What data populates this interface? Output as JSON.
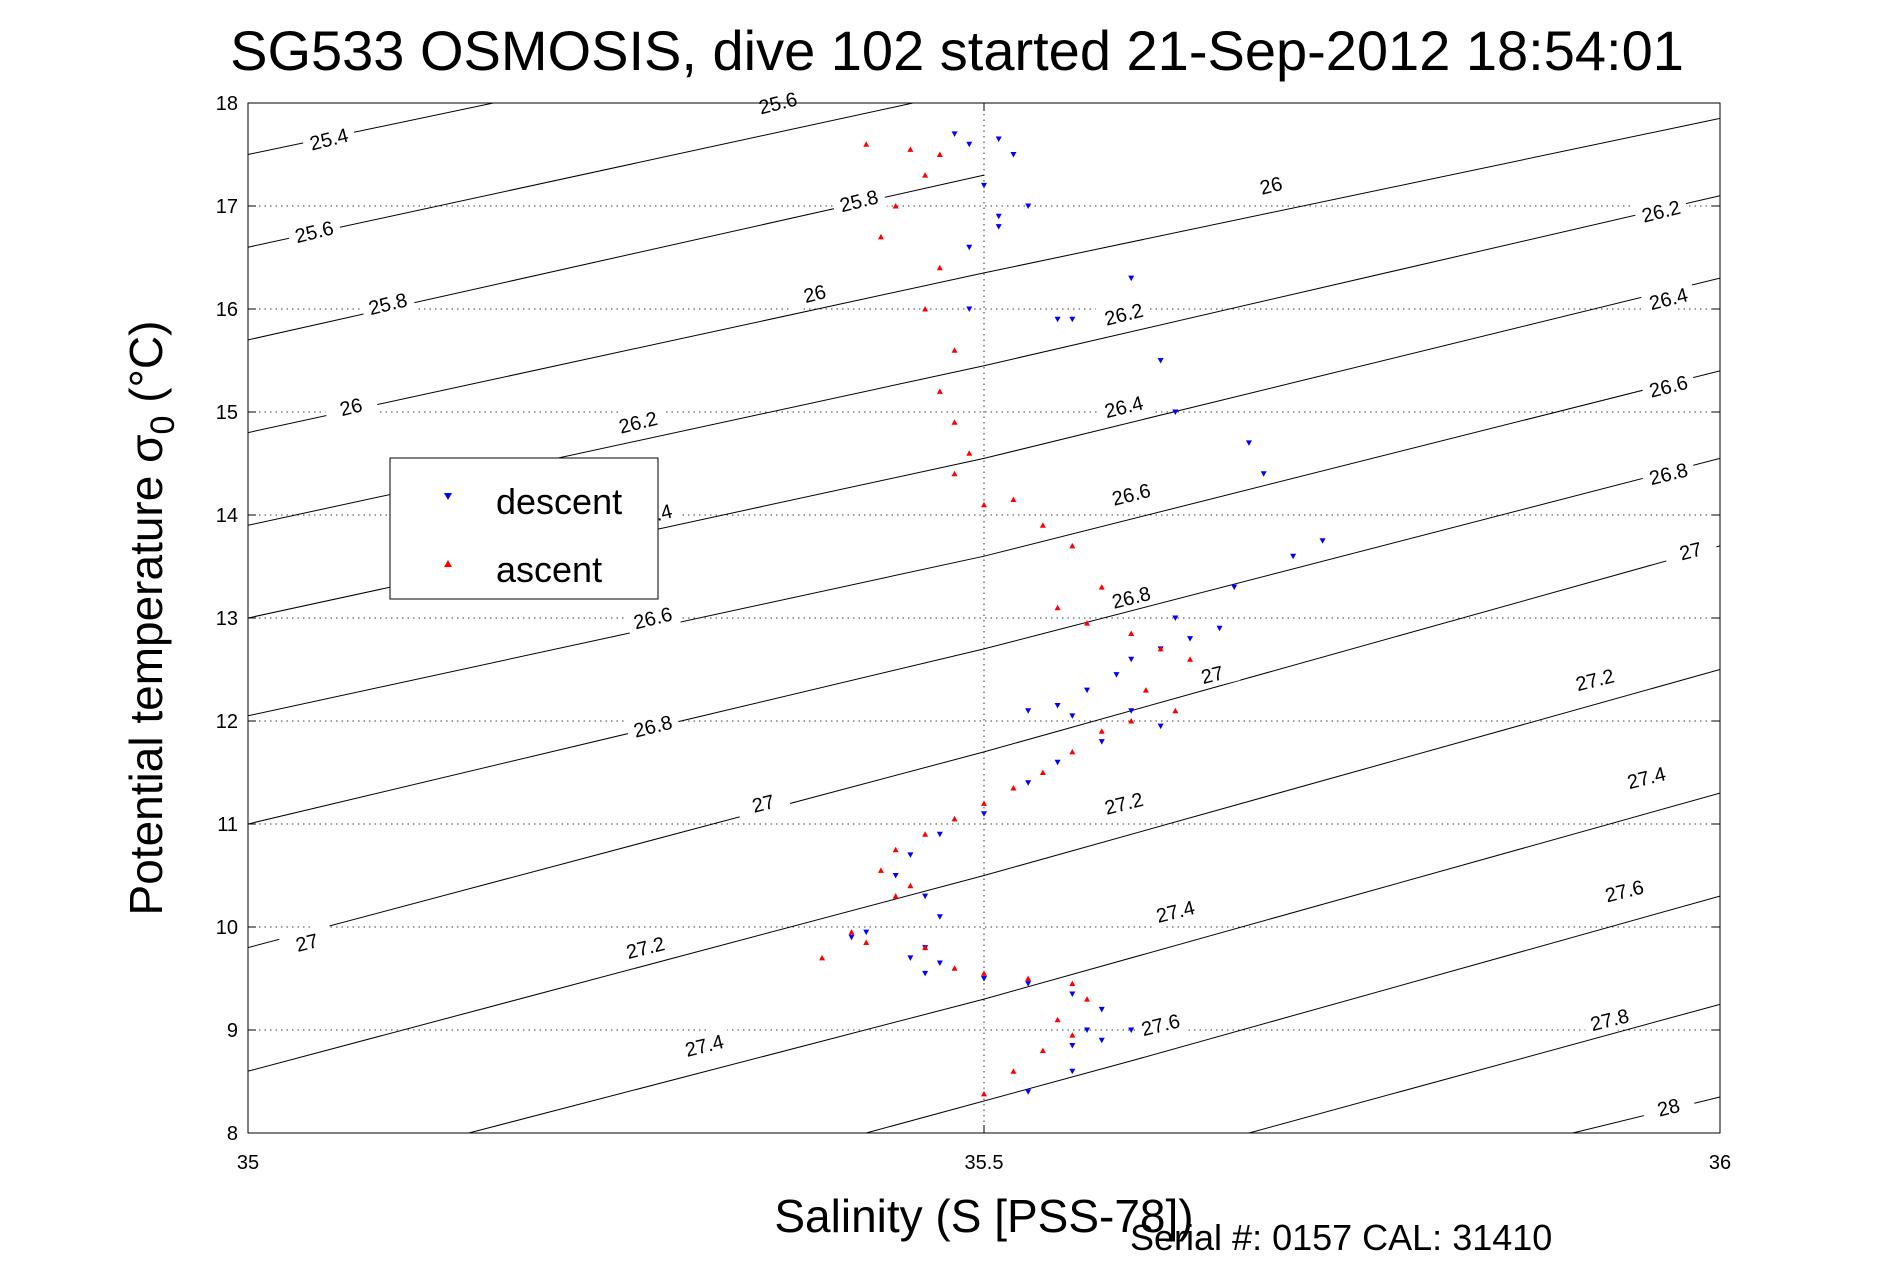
{
  "chart_data": {
    "type": "scatter",
    "title": "SG533 OSMOSIS, dive 102 started 21-Sep-2012 18:54:01",
    "xlabel": "Salinity (S [PSS-78])",
    "ylabel_main": "Potential temperature ",
    "ylabel_sigma": "σ",
    "ylabel_sub": "0",
    "ylabel_unit": " (°C)",
    "xlim": [
      35,
      36
    ],
    "ylim": [
      8,
      18
    ],
    "x_ticks": [
      35,
      35.5,
      36
    ],
    "x_tick_labels": [
      "35",
      "35.5",
      "36"
    ],
    "y_ticks": [
      8,
      9,
      10,
      11,
      12,
      13,
      14,
      15,
      16,
      17,
      18
    ],
    "y_tick_labels": [
      "8",
      "9",
      "10",
      "11",
      "12",
      "13",
      "14",
      "15",
      "16",
      "17",
      "18"
    ],
    "grid": true,
    "legend_position": "left-center",
    "footer": "Serial #: 0157  CAL: 31410",
    "density_contours": [
      {
        "value": "25.4",
        "points": [
          [
            35.0,
            17.5
          ],
          [
            35.5,
            19.0
          ]
        ]
      },
      {
        "value": "25.6",
        "points": [
          [
            35.0,
            16.6
          ],
          [
            35.5,
            18.15
          ]
        ]
      },
      {
        "value": "25.8",
        "points": [
          [
            35.0,
            15.7
          ],
          [
            35.5,
            17.3
          ]
        ]
      },
      {
        "value": "26",
        "points": [
          [
            35.0,
            14.8
          ],
          [
            35.5,
            16.35
          ],
          [
            36.0,
            17.85
          ]
        ]
      },
      {
        "value": "26.2",
        "points": [
          [
            35.0,
            13.9
          ],
          [
            35.5,
            15.45
          ],
          [
            36.0,
            17.1
          ]
        ]
      },
      {
        "value": "26.4",
        "points": [
          [
            35.0,
            13.0
          ],
          [
            35.5,
            14.55
          ],
          [
            36.0,
            16.3
          ]
        ]
      },
      {
        "value": "26.6",
        "points": [
          [
            35.0,
            12.05
          ],
          [
            35.5,
            13.6
          ],
          [
            36.0,
            15.4
          ]
        ]
      },
      {
        "value": "26.8",
        "points": [
          [
            35.0,
            11.0
          ],
          [
            35.5,
            12.7
          ],
          [
            36.0,
            14.55
          ]
        ]
      },
      {
        "value": "27",
        "points": [
          [
            35.0,
            9.8
          ],
          [
            35.5,
            11.7
          ],
          [
            36.0,
            13.7
          ]
        ]
      },
      {
        "value": "27.2",
        "points": [
          [
            35.0,
            8.6
          ],
          [
            35.5,
            10.5
          ],
          [
            36.0,
            12.5
          ]
        ]
      },
      {
        "value": "27.4",
        "points": [
          [
            35.15,
            8.0
          ],
          [
            35.5,
            9.3
          ],
          [
            36.0,
            11.3
          ]
        ]
      },
      {
        "value": "27.6",
        "points": [
          [
            35.42,
            8.0
          ],
          [
            35.6,
            8.7
          ],
          [
            36.0,
            10.3
          ]
        ]
      },
      {
        "value": "27.8",
        "points": [
          [
            35.68,
            8.0
          ],
          [
            36.0,
            9.25
          ]
        ]
      },
      {
        "value": "28",
        "points": [
          [
            35.9,
            8.0
          ],
          [
            36.0,
            8.35
          ]
        ]
      }
    ],
    "contour_labels": [
      {
        "text": "25.4",
        "x": 35.055,
        "y": 17.65
      },
      {
        "text": "25.6",
        "x": 35.36,
        "y": 18.0
      },
      {
        "text": "25.6",
        "x": 35.045,
        "y": 16.75
      },
      {
        "text": "25.8",
        "x": 35.415,
        "y": 17.05
      },
      {
        "text": "25.8",
        "x": 35.095,
        "y": 16.05
      },
      {
        "text": "26",
        "x": 35.695,
        "y": 17.2
      },
      {
        "text": "26",
        "x": 35.385,
        "y": 16.15
      },
      {
        "text": "26",
        "x": 35.07,
        "y": 15.05
      },
      {
        "text": "26.2",
        "x": 35.96,
        "y": 16.95
      },
      {
        "text": "26.2",
        "x": 35.595,
        "y": 15.95
      },
      {
        "text": "26.2",
        "x": 35.265,
        "y": 14.9
      },
      {
        "text": "26.4",
        "x": 35.965,
        "y": 16.1
      },
      {
        "text": "26.4",
        "x": 35.595,
        "y": 15.05
      },
      {
        "text": "26.4",
        "x": 35.275,
        "y": 14.0
      },
      {
        "text": "26.6",
        "x": 35.965,
        "y": 15.25
      },
      {
        "text": "26.6",
        "x": 35.6,
        "y": 14.2
      },
      {
        "text": "26.6",
        "x": 35.275,
        "y": 13.0
      },
      {
        "text": "26.8",
        "x": 35.965,
        "y": 14.4
      },
      {
        "text": "26.8",
        "x": 35.6,
        "y": 13.2
      },
      {
        "text": "26.8",
        "x": 35.275,
        "y": 11.95
      },
      {
        "text": "27",
        "x": 35.98,
        "y": 13.65
      },
      {
        "text": "27",
        "x": 35.655,
        "y": 12.45
      },
      {
        "text": "27",
        "x": 35.35,
        "y": 11.2
      },
      {
        "text": "27",
        "x": 35.04,
        "y": 9.85
      },
      {
        "text": "27.2",
        "x": 35.915,
        "y": 12.4
      },
      {
        "text": "27.2",
        "x": 35.595,
        "y": 11.2
      },
      {
        "text": "27.2",
        "x": 35.27,
        "y": 9.8
      },
      {
        "text": "27.4",
        "x": 35.95,
        "y": 11.45
      },
      {
        "text": "27.4",
        "x": 35.63,
        "y": 10.15
      },
      {
        "text": "27.4",
        "x": 35.31,
        "y": 8.85
      },
      {
        "text": "27.6",
        "x": 35.935,
        "y": 10.35
      },
      {
        "text": "27.6",
        "x": 35.62,
        "y": 9.05
      },
      {
        "text": "27.8",
        "x": 35.925,
        "y": 9.1
      },
      {
        "text": "28",
        "x": 35.965,
        "y": 8.25
      }
    ],
    "series": [
      {
        "name": "descent",
        "color": "#0000ff",
        "marker": "triangle-down",
        "x": [
          35.48,
          35.49,
          35.51,
          35.52,
          35.5,
          35.51,
          35.53,
          35.49,
          35.51,
          35.49,
          35.6,
          35.56,
          35.55,
          35.62,
          35.63,
          35.68,
          35.69,
          35.73,
          35.71,
          35.67,
          35.63,
          35.66,
          35.64,
          35.62,
          35.6,
          35.59,
          35.57,
          35.55,
          35.53,
          35.56,
          35.6,
          35.62,
          35.58,
          35.55,
          35.53,
          35.5,
          35.47,
          35.45,
          35.46,
          35.44,
          35.47,
          35.46,
          35.45,
          35.41,
          35.42,
          35.47,
          35.46,
          35.5,
          35.53,
          35.56,
          35.58,
          35.57,
          35.56,
          35.58,
          35.6,
          35.56,
          35.53
        ],
        "y": [
          17.7,
          17.6,
          17.65,
          17.5,
          17.2,
          16.8,
          17.0,
          16.6,
          16.9,
          16.0,
          16.3,
          15.9,
          15.9,
          15.5,
          15.0,
          14.7,
          14.4,
          13.75,
          13.6,
          13.3,
          13.0,
          12.9,
          12.8,
          12.7,
          12.6,
          12.45,
          12.3,
          12.15,
          12.1,
          12.05,
          12.1,
          11.95,
          11.8,
          11.6,
          11.4,
          11.1,
          10.9,
          10.7,
          10.3,
          10.5,
          10.1,
          9.8,
          9.7,
          9.9,
          9.95,
          9.65,
          9.55,
          9.5,
          9.45,
          9.35,
          9.2,
          9.0,
          8.85,
          8.9,
          9.0,
          8.6,
          8.4
        ]
      },
      {
        "name": "ascent",
        "color": "#ff0000",
        "marker": "triangle-up",
        "x": [
          35.42,
          35.45,
          35.47,
          35.46,
          35.44,
          35.43,
          35.47,
          35.46,
          35.48,
          35.47,
          35.48,
          35.49,
          35.48,
          35.5,
          35.52,
          35.54,
          35.56,
          35.58,
          35.55,
          35.57,
          35.6,
          35.62,
          35.64,
          35.61,
          35.63,
          35.6,
          35.58,
          35.56,
          35.54,
          35.52,
          35.5,
          35.48,
          35.46,
          35.44,
          35.43,
          35.45,
          35.44,
          35.41,
          35.39,
          35.42,
          35.46,
          35.48,
          35.5,
          35.53,
          35.56,
          35.57,
          35.55,
          35.56,
          35.54,
          35.52,
          35.5
        ],
        "y": [
          17.6,
          17.55,
          17.5,
          17.3,
          17.0,
          16.7,
          16.4,
          16.0,
          15.6,
          15.2,
          14.9,
          14.6,
          14.4,
          14.1,
          14.15,
          13.9,
          13.7,
          13.3,
          13.1,
          12.95,
          12.85,
          12.7,
          12.6,
          12.3,
          12.1,
          12.0,
          11.9,
          11.7,
          11.5,
          11.35,
          11.2,
          11.05,
          10.9,
          10.75,
          10.55,
          10.4,
          10.3,
          9.95,
          9.7,
          9.85,
          9.8,
          9.6,
          9.55,
          9.5,
          9.45,
          9.3,
          9.1,
          8.95,
          8.8,
          8.6,
          8.38
        ]
      }
    ]
  }
}
